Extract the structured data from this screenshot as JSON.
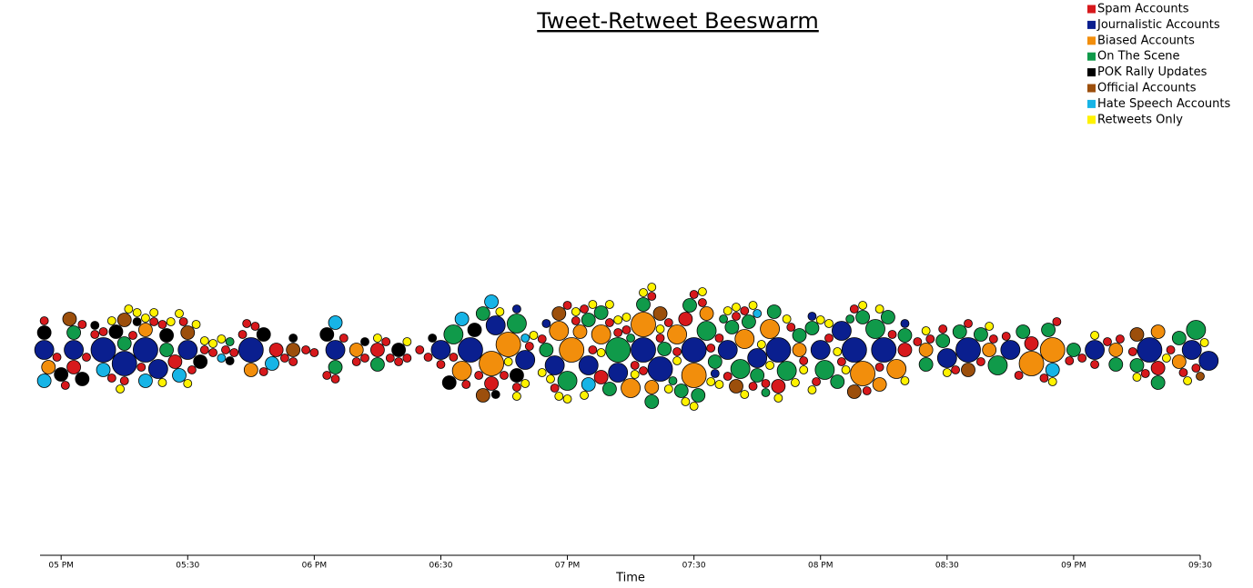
{
  "chart_data": {
    "type": "beeswarm",
    "title": "Tweet-Retweet Beeswarm",
    "x_label": "Time",
    "xlim": [
      "16:55",
      "21:30"
    ],
    "xticks": [
      {
        "value": "17:00",
        "label": "05 PM"
      },
      {
        "value": "17:30",
        "label": "05:30"
      },
      {
        "value": "18:00",
        "label": "06 PM"
      },
      {
        "value": "18:30",
        "label": "06:30"
      },
      {
        "value": "19:00",
        "label": "07 PM"
      },
      {
        "value": "19:30",
        "label": "07:30"
      },
      {
        "value": "20:00",
        "label": "08 PM"
      },
      {
        "value": "20:30",
        "label": "08:30"
      },
      {
        "value": "21:00",
        "label": "09 PM"
      },
      {
        "value": "21:30",
        "label": "09:30"
      }
    ],
    "legend": "top-right",
    "series": [
      {
        "name": "Spam Accounts",
        "color": "#d7191c",
        "x": [
          "16:56",
          "16:59",
          "17:01",
          "17:03",
          "17:05",
          "17:08",
          "17:10",
          "17:12",
          "17:15",
          "17:17",
          "17:19",
          "17:22",
          "17:24",
          "17:27",
          "17:29",
          "17:31",
          "17:34",
          "17:36",
          "17:39",
          "17:41",
          "17:43",
          "17:46",
          "17:48",
          "17:51",
          "17:53",
          "17:55",
          "17:58",
          "18:00",
          "18:03",
          "18:05",
          "18:07",
          "18:10",
          "18:12",
          "18:15",
          "18:17",
          "18:20",
          "18:22",
          "18:25",
          "18:27",
          "18:30",
          "18:33",
          "18:36",
          "18:39",
          "18:42",
          "18:45",
          "18:48",
          "18:51",
          "18:54",
          "18:57",
          "19:00",
          "19:02",
          "19:04",
          "19:06",
          "19:08",
          "19:10",
          "19:12",
          "19:14",
          "19:16",
          "19:18",
          "19:20",
          "19:22",
          "19:24",
          "19:26",
          "19:28",
          "19:30",
          "19:32",
          "19:34",
          "19:36",
          "19:38",
          "19:40",
          "19:42",
          "19:44",
          "19:47",
          "19:50",
          "19:53",
          "19:56",
          "19:59",
          "20:02",
          "20:05",
          "20:08",
          "20:11",
          "20:14",
          "20:17",
          "20:20",
          "20:23",
          "20:26",
          "20:29",
          "20:32",
          "20:35",
          "20:38",
          "20:41",
          "20:44",
          "20:47",
          "20:50",
          "20:53",
          "20:56",
          "20:59",
          "21:02",
          "21:05",
          "21:08",
          "21:11",
          "21:14",
          "21:17",
          "21:20",
          "21:23",
          "21:26",
          "21:29",
          "17:06",
          "17:44",
          "18:18"
        ],
        "values": [
          1,
          1,
          1,
          2,
          1,
          1,
          1,
          1,
          1,
          1,
          1,
          1,
          1,
          2,
          1,
          1,
          1,
          1,
          1,
          1,
          1,
          1,
          1,
          2,
          1,
          1,
          1,
          1,
          1,
          1,
          1,
          1,
          1,
          2,
          1,
          1,
          1,
          1,
          1,
          1,
          1,
          1,
          1,
          2,
          1,
          1,
          1,
          1,
          1,
          1,
          1,
          1,
          1,
          2,
          1,
          1,
          1,
          1,
          1,
          1,
          1,
          1,
          1,
          2,
          1,
          1,
          1,
          1,
          1,
          1,
          1,
          1,
          1,
          2,
          1,
          1,
          1,
          1,
          1,
          1,
          1,
          1,
          1,
          2,
          1,
          1,
          1,
          1,
          1,
          1,
          1,
          1,
          1,
          2,
          1,
          1,
          1,
          1,
          1,
          1,
          1,
          1,
          1,
          2,
          1,
          1,
          1,
          1,
          1,
          1
        ]
      },
      {
        "name": "Journalistic Accounts",
        "color": "#0a1f8f",
        "x": [
          "16:56",
          "17:03",
          "17:10",
          "17:15",
          "17:20",
          "17:23",
          "17:30",
          "17:45",
          "18:05",
          "18:30",
          "18:37",
          "18:43",
          "18:50",
          "18:57",
          "19:05",
          "19:12",
          "19:18",
          "19:22",
          "19:30",
          "19:38",
          "19:45",
          "19:50",
          "20:00",
          "20:05",
          "20:08",
          "20:15",
          "20:35",
          "20:30",
          "20:45",
          "21:05",
          "21:18",
          "21:28",
          "21:32",
          "18:55",
          "19:35",
          "20:20",
          "19:58",
          "18:48"
        ],
        "values": [
          3,
          3,
          4,
          4,
          4,
          3,
          3,
          4,
          3,
          3,
          4,
          3,
          3,
          3,
          3,
          3,
          4,
          4,
          4,
          3,
          3,
          4,
          3,
          3,
          4,
          4,
          4,
          3,
          3,
          3,
          4,
          3,
          3,
          1,
          1,
          1,
          1,
          1
        ]
      },
      {
        "name": "Biased Accounts",
        "color": "#f28e0c",
        "x": [
          "16:57",
          "17:20",
          "17:45",
          "18:10",
          "18:35",
          "18:42",
          "18:46",
          "18:58",
          "19:01",
          "19:03",
          "19:08",
          "19:15",
          "19:18",
          "19:20",
          "19:26",
          "19:30",
          "19:33",
          "19:42",
          "19:48",
          "19:55",
          "20:10",
          "20:14",
          "20:18",
          "20:25",
          "20:40",
          "20:55",
          "20:50",
          "21:10",
          "21:20",
          "21:25"
        ],
        "values": [
          2,
          2,
          2,
          2,
          3,
          4,
          4,
          3,
          4,
          2,
          3,
          3,
          4,
          2,
          3,
          4,
          2,
          3,
          3,
          2,
          4,
          2,
          3,
          2,
          2,
          4,
          4,
          2,
          2,
          2
        ]
      },
      {
        "name": "On The Scene",
        "color": "#109a4a",
        "x": [
          "17:03",
          "17:15",
          "17:25",
          "17:40",
          "18:05",
          "18:15",
          "18:33",
          "18:40",
          "18:48",
          "18:55",
          "19:00",
          "19:05",
          "19:08",
          "19:10",
          "19:12",
          "19:15",
          "19:18",
          "19:20",
          "19:23",
          "19:25",
          "19:27",
          "19:29",
          "19:31",
          "19:33",
          "19:35",
          "19:37",
          "19:39",
          "19:41",
          "19:43",
          "19:45",
          "19:47",
          "19:49",
          "19:52",
          "19:55",
          "19:58",
          "20:01",
          "20:04",
          "20:07",
          "20:10",
          "20:13",
          "20:16",
          "20:20",
          "20:25",
          "20:29",
          "20:33",
          "20:38",
          "20:42",
          "20:48",
          "20:54",
          "21:00",
          "21:10",
          "21:15",
          "21:20",
          "21:25",
          "21:29"
        ],
        "values": [
          2,
          2,
          2,
          1,
          2,
          2,
          3,
          2,
          3,
          2,
          3,
          2,
          2,
          2,
          4,
          1,
          2,
          2,
          2,
          1,
          2,
          2,
          2,
          3,
          2,
          1,
          2,
          3,
          2,
          2,
          1,
          2,
          3,
          2,
          2,
          3,
          2,
          1,
          2,
          3,
          2,
          2,
          2,
          2,
          2,
          2,
          3,
          2,
          2,
          2,
          2,
          2,
          2,
          2,
          3
        ]
      },
      {
        "name": "POK Rally Updates",
        "color": "#000000",
        "x": [
          "16:56",
          "17:00",
          "17:05",
          "17:08",
          "17:13",
          "17:18",
          "17:25",
          "17:33",
          "17:40",
          "17:48",
          "17:55",
          "18:03",
          "18:12",
          "18:20",
          "18:28",
          "18:32",
          "18:38",
          "18:43",
          "18:48"
        ],
        "values": [
          2,
          2,
          2,
          1,
          2,
          1,
          2,
          2,
          1,
          2,
          1,
          2,
          1,
          2,
          1,
          2,
          2,
          1,
          2
        ]
      },
      {
        "name": "Official Accounts",
        "color": "#9c4f0c",
        "x": [
          "17:02",
          "17:15",
          "17:30",
          "17:55",
          "18:40",
          "18:58",
          "19:22",
          "19:40",
          "20:08",
          "20:35",
          "21:15",
          "21:30"
        ],
        "values": [
          2,
          2,
          2,
          2,
          2,
          2,
          2,
          2,
          2,
          2,
          2,
          1
        ]
      },
      {
        "name": "Hate Speech Accounts",
        "color": "#17b4e6",
        "x": [
          "16:56",
          "17:10",
          "17:20",
          "17:28",
          "17:38",
          "17:50",
          "18:05",
          "18:35",
          "18:42",
          "18:50",
          "19:05",
          "19:45",
          "20:55"
        ],
        "values": [
          2,
          2,
          2,
          2,
          1,
          2,
          2,
          2,
          2,
          1,
          2,
          1,
          2
        ]
      },
      {
        "name": "Retweets Only",
        "color": "#fff200",
        "x": [
          "17:12",
          "17:14",
          "17:16",
          "17:18",
          "17:20",
          "17:22",
          "17:24",
          "17:26",
          "17:28",
          "17:30",
          "17:32",
          "17:34",
          "17:36",
          "17:38",
          "18:15",
          "18:22",
          "18:44",
          "18:46",
          "18:48",
          "18:50",
          "18:52",
          "18:54",
          "18:56",
          "18:58",
          "19:00",
          "19:02",
          "19:04",
          "19:06",
          "19:08",
          "19:10",
          "19:12",
          "19:14",
          "19:16",
          "19:18",
          "19:20",
          "19:22",
          "19:24",
          "19:26",
          "19:28",
          "19:30",
          "19:32",
          "19:34",
          "19:36",
          "19:38",
          "19:40",
          "19:42",
          "19:44",
          "19:46",
          "19:48",
          "19:50",
          "19:52",
          "19:54",
          "19:56",
          "19:58",
          "20:00",
          "20:02",
          "20:04",
          "20:06",
          "20:10",
          "20:14",
          "20:20",
          "20:25",
          "20:30",
          "20:40",
          "20:55",
          "21:05",
          "21:15",
          "21:22",
          "21:27",
          "21:31"
        ],
        "values": [
          1,
          1,
          1,
          1,
          1,
          1,
          1,
          1,
          1,
          1,
          1,
          1,
          1,
          1,
          1,
          1,
          1,
          1,
          1,
          1,
          1,
          1,
          1,
          1,
          1,
          1,
          1,
          1,
          1,
          1,
          1,
          1,
          1,
          1,
          1,
          1,
          1,
          1,
          1,
          1,
          1,
          1,
          1,
          1,
          1,
          1,
          1,
          1,
          1,
          1,
          1,
          1,
          1,
          1,
          1,
          1,
          1,
          1,
          1,
          1,
          1,
          1,
          1,
          1,
          1,
          1,
          1,
          1,
          1,
          1
        ]
      }
    ]
  }
}
